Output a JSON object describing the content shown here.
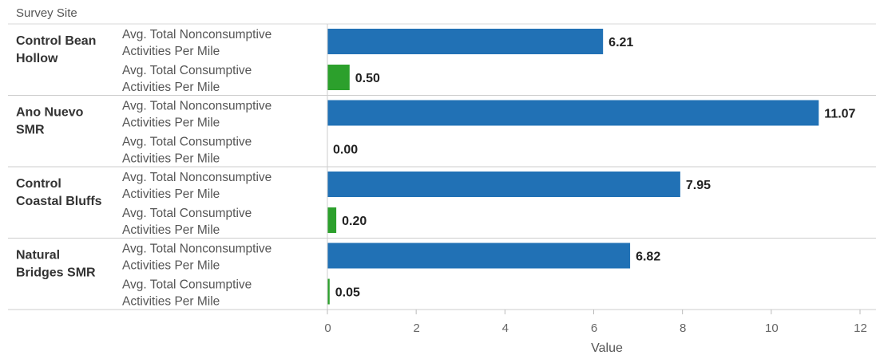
{
  "header": {
    "row_label": "Survey Site"
  },
  "colors": {
    "nonconsumptive": "#2171b5",
    "consumptive": "#2ca02c"
  },
  "chart_data": {
    "type": "bar",
    "orientation": "horizontal",
    "xlabel": "Value",
    "xlim": [
      0,
      12
    ],
    "xticks": [
      0,
      2,
      4,
      6,
      8,
      10,
      12
    ],
    "legend": "none",
    "grid": false,
    "groups": [
      {
        "site_lines": [
          "Control Bean",
          "Hollow"
        ],
        "bars": [
          {
            "measure_lines": [
              "Avg. Total Nonconsumptive",
              "Activities Per Mile"
            ],
            "type": "nonconsumptive",
            "value": 6.21,
            "label": "6.21"
          },
          {
            "measure_lines": [
              "Avg. Total Consumptive",
              "Activities Per Mile"
            ],
            "type": "consumptive",
            "value": 0.5,
            "label": "0.50"
          }
        ]
      },
      {
        "site_lines": [
          "Ano Nuevo",
          "SMR"
        ],
        "bars": [
          {
            "measure_lines": [
              "Avg. Total Nonconsumptive",
              "Activities Per Mile"
            ],
            "type": "nonconsumptive",
            "value": 11.07,
            "label": "11.07"
          },
          {
            "measure_lines": [
              "Avg. Total Consumptive",
              "Activities Per Mile"
            ],
            "type": "consumptive",
            "value": 0.0,
            "label": "0.00"
          }
        ]
      },
      {
        "site_lines": [
          "Control",
          "Coastal Bluffs"
        ],
        "bars": [
          {
            "measure_lines": [
              "Avg. Total Nonconsumptive",
              "Activities Per Mile"
            ],
            "type": "nonconsumptive",
            "value": 7.95,
            "label": "7.95"
          },
          {
            "measure_lines": [
              "Avg. Total Consumptive",
              "Activities Per Mile"
            ],
            "type": "consumptive",
            "value": 0.2,
            "label": "0.20"
          }
        ]
      },
      {
        "site_lines": [
          "Natural",
          "Bridges SMR"
        ],
        "bars": [
          {
            "measure_lines": [
              "Avg. Total Nonconsumptive",
              "Activities Per Mile"
            ],
            "type": "nonconsumptive",
            "value": 6.82,
            "label": "6.82"
          },
          {
            "measure_lines": [
              "Avg. Total Consumptive",
              "Activities Per Mile"
            ],
            "type": "consumptive",
            "value": 0.05,
            "label": "0.05"
          }
        ]
      }
    ]
  }
}
